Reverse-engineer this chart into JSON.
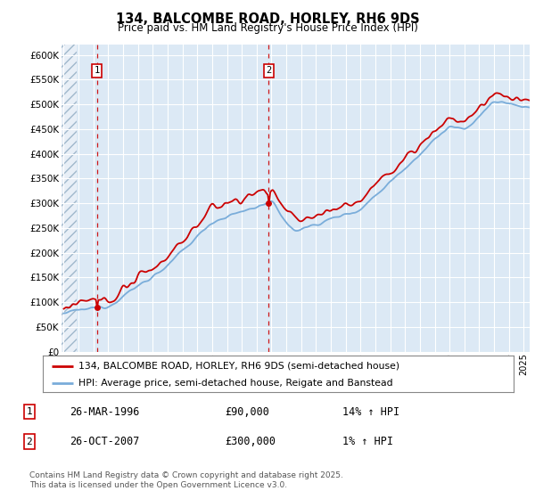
{
  "title": "134, BALCOMBE ROAD, HORLEY, RH6 9DS",
  "subtitle": "Price paid vs. HM Land Registry's House Price Index (HPI)",
  "bg_color": "#dce9f5",
  "hatch_color": "#b8cfe0",
  "grid_color": "#ffffff",
  "ylim": [
    0,
    620000
  ],
  "yticks": [
    0,
    50000,
    100000,
    150000,
    200000,
    250000,
    300000,
    350000,
    400000,
    450000,
    500000,
    550000,
    600000
  ],
  "x_start_year": 1994,
  "x_end_year": 2025,
  "sale1_year": 1996.23,
  "sale1_price": 90000,
  "sale2_year": 2007.82,
  "sale2_price": 300000,
  "legend_label_property": "134, BALCOMBE ROAD, HORLEY, RH6 9DS (semi-detached house)",
  "legend_label_hpi": "HPI: Average price, semi-detached house, Reigate and Banstead",
  "note1_num": "1",
  "note1_date": "26-MAR-1996",
  "note1_price": "£90,000",
  "note1_hpi": "14% ↑ HPI",
  "note2_num": "2",
  "note2_date": "26-OCT-2007",
  "note2_price": "£300,000",
  "note2_hpi": "1% ↑ HPI",
  "footer": "Contains HM Land Registry data © Crown copyright and database right 2025.\nThis data is licensed under the Open Government Licence v3.0.",
  "property_color": "#cc0000",
  "hpi_color": "#7aadda",
  "dashed_line_color": "#cc0000"
}
